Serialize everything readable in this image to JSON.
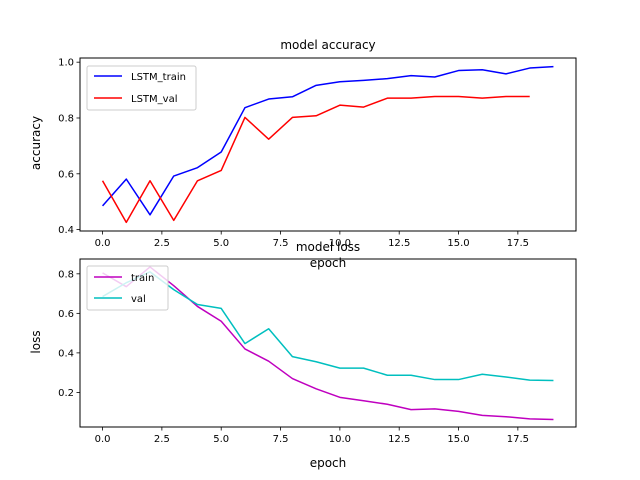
{
  "chart_data": [
    {
      "type": "line",
      "title": "model accuracy",
      "xlabel": "epoch",
      "ylabel": "accuracy",
      "xlim": [
        -0.95,
        19.95
      ],
      "ylim": [
        0.395,
        1.015
      ],
      "xticks": [
        0.0,
        2.5,
        5.0,
        7.5,
        10.0,
        12.5,
        15.0,
        17.5
      ],
      "xtick_labels": [
        "0.0",
        "2.5",
        "5.0",
        "7.5",
        "10.0",
        "12.5",
        "15.0",
        "17.5"
      ],
      "yticks": [
        0.4,
        0.6,
        0.8,
        1.0
      ],
      "ytick_labels": [
        "0.4",
        "0.6",
        "0.8",
        "1.0"
      ],
      "grid": false,
      "legend_position": "top-left",
      "series": [
        {
          "name": "LSTM_train",
          "color": "#0000ff",
          "x": [
            0,
            1,
            2,
            3,
            4,
            5,
            6,
            7,
            8,
            9,
            10,
            11,
            12,
            13,
            14,
            15,
            16,
            17,
            18,
            19
          ],
          "y": [
            0.485,
            0.581,
            0.453,
            0.592,
            0.622,
            0.678,
            0.837,
            0.868,
            0.876,
            0.917,
            0.93,
            0.935,
            0.941,
            0.952,
            0.947,
            0.97,
            0.973,
            0.958,
            0.979,
            0.984
          ]
        },
        {
          "name": "LSTM_val",
          "color": "#ff0000",
          "x": [
            0,
            1,
            2,
            3,
            4,
            5,
            6,
            7,
            8,
            9,
            10,
            11,
            12,
            13,
            14,
            15,
            16,
            17,
            18
          ],
          "y": [
            0.575,
            0.426,
            0.575,
            0.433,
            0.575,
            0.612,
            0.802,
            0.724,
            0.802,
            0.808,
            0.846,
            0.839,
            0.871,
            0.871,
            0.877,
            0.877,
            0.871,
            0.877,
            0.877
          ]
        }
      ]
    },
    {
      "type": "line",
      "title": "model loss",
      "xlabel": "epoch",
      "ylabel": "loss",
      "xlim": [
        -0.95,
        19.95
      ],
      "ylim": [
        0.025,
        0.875
      ],
      "xticks": [
        0.0,
        2.5,
        5.0,
        7.5,
        10.0,
        12.5,
        15.0,
        17.5
      ],
      "xtick_labels": [
        "0.0",
        "2.5",
        "5.0",
        "7.5",
        "10.0",
        "12.5",
        "15.0",
        "17.5"
      ],
      "yticks": [
        0.2,
        0.4,
        0.6,
        0.8
      ],
      "ytick_labels": [
        "0.2",
        "0.4",
        "0.6",
        "0.8"
      ],
      "grid": false,
      "legend_position": "top-left",
      "series": [
        {
          "name": "train",
          "color": "#bf00bf",
          "x": [
            0,
            1,
            2,
            3,
            4,
            5,
            6,
            7,
            8,
            9,
            10,
            11,
            12,
            13,
            14,
            15,
            16,
            17,
            18,
            19
          ],
          "y": [
            0.805,
            0.735,
            0.835,
            0.74,
            0.635,
            0.56,
            0.42,
            0.358,
            0.27,
            0.218,
            0.175,
            0.158,
            0.14,
            0.113,
            0.117,
            0.104,
            0.084,
            0.077,
            0.066,
            0.063
          ]
        },
        {
          "name": "val",
          "color": "#00bfbf",
          "x": [
            0,
            1,
            2,
            3,
            4,
            5,
            6,
            7,
            8,
            9,
            10,
            11,
            12,
            13,
            14,
            15,
            16,
            17,
            18,
            19
          ],
          "y": [
            0.685,
            0.755,
            0.81,
            0.72,
            0.645,
            0.625,
            0.447,
            0.522,
            0.381,
            0.355,
            0.323,
            0.323,
            0.287,
            0.287,
            0.265,
            0.265,
            0.292,
            0.278,
            0.262,
            0.26
          ]
        }
      ]
    }
  ]
}
